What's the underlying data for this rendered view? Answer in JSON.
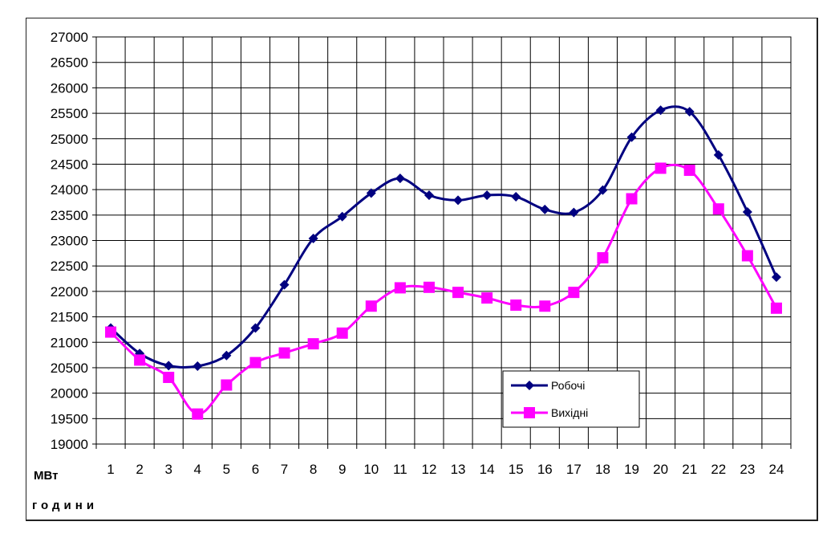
{
  "chart_data": {
    "type": "line",
    "title": "",
    "ylabel": "МВт",
    "xlabel": "години",
    "x": [
      1,
      2,
      3,
      4,
      5,
      6,
      7,
      8,
      9,
      10,
      11,
      12,
      13,
      14,
      15,
      16,
      17,
      18,
      19,
      20,
      21,
      22,
      23,
      24
    ],
    "ylim": [
      19000,
      27000
    ],
    "yticks": [
      19000,
      19500,
      20000,
      20500,
      21000,
      21500,
      22000,
      22500,
      23000,
      23500,
      24000,
      24500,
      25000,
      25500,
      26000,
      26500,
      27000
    ],
    "grid": true,
    "legend_position": "bottom-right-inside",
    "series": [
      {
        "name": "Робочі",
        "color": "#000080",
        "marker": "diamond",
        "values": [
          21280,
          20780,
          20540,
          20530,
          20740,
          21280,
          22130,
          23040,
          23470,
          23930,
          24220,
          23890,
          23790,
          23890,
          23860,
          23610,
          23550,
          23990,
          25030,
          25560,
          25530,
          24680,
          23560,
          22280
        ]
      },
      {
        "name": "Вихідні",
        "color": "#ff00ff",
        "marker": "square",
        "values": [
          21200,
          20650,
          20310,
          19590,
          20160,
          20600,
          20790,
          20970,
          21180,
          21710,
          22070,
          22080,
          21980,
          21870,
          21730,
          21710,
          21980,
          22660,
          23820,
          24420,
          24380,
          23620,
          22700,
          21670
        ]
      }
    ]
  }
}
